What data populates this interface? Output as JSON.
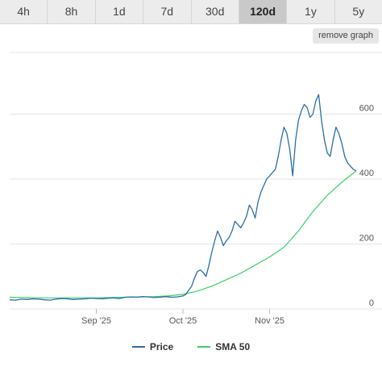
{
  "range_tabs": [
    "4h",
    "8h",
    "1d",
    "7d",
    "30d",
    "120d",
    "1y",
    "5y"
  ],
  "active_tab": "120d",
  "remove_graph_label": "remove graph",
  "colors": {
    "price": "#2a6fa8",
    "sma": "#3ecf6a",
    "grid": "#e4e4e4"
  },
  "chart_data": {
    "type": "line",
    "x_ticks": [
      "Sep '25",
      "Oct '25",
      "Nov '25"
    ],
    "x_tick_days": [
      30,
      60,
      90
    ],
    "y_ticks": [
      0,
      200,
      400,
      600
    ],
    "ylim": [
      0,
      790
    ],
    "xlim": [
      0,
      120
    ],
    "y_axis_side": "right",
    "grid": true,
    "series": [
      {
        "name": "Price",
        "x": [
          0,
          2,
          4,
          6,
          8,
          10,
          12,
          14,
          16,
          18,
          20,
          22,
          24,
          26,
          28,
          30,
          32,
          34,
          36,
          38,
          40,
          42,
          44,
          46,
          48,
          50,
          52,
          54,
          56,
          58,
          60,
          61,
          62,
          63,
          64,
          65,
          66,
          67,
          68,
          69,
          70,
          71,
          72,
          73,
          74,
          75,
          76,
          77,
          78,
          79,
          80,
          81,
          82,
          83,
          84,
          85,
          86,
          87,
          88,
          89,
          90,
          91,
          92,
          93,
          94,
          95,
          96,
          97,
          98,
          99,
          100,
          101,
          102,
          103,
          104,
          105,
          106,
          107,
          108,
          109,
          110,
          111,
          112,
          113,
          114,
          115,
          116,
          117,
          118,
          119,
          120
        ],
        "y": [
          28,
          27,
          30,
          29,
          31,
          30,
          28,
          27,
          30,
          32,
          31,
          29,
          30,
          31,
          33,
          32,
          31,
          33,
          34,
          32,
          36,
          37,
          36,
          38,
          37,
          35,
          36,
          38,
          36,
          37,
          40,
          45,
          58,
          70,
          95,
          115,
          120,
          112,
          100,
          135,
          175,
          210,
          240,
          220,
          195,
          210,
          220,
          240,
          270,
          260,
          250,
          265,
          285,
          320,
          305,
          280,
          330,
          360,
          380,
          400,
          410,
          420,
          430,
          470,
          520,
          560,
          540,
          490,
          410,
          520,
          580,
          610,
          630,
          620,
          590,
          600,
          640,
          660,
          580,
          520,
          480,
          470,
          520,
          560,
          540,
          510,
          470,
          450,
          440,
          430,
          425
        ],
        "color_key": "price"
      },
      {
        "name": "SMA 50",
        "x": [
          0,
          5,
          10,
          15,
          20,
          25,
          30,
          35,
          40,
          45,
          50,
          55,
          60,
          65,
          70,
          75,
          80,
          85,
          90,
          95,
          100,
          105,
          110,
          115,
          120
        ],
        "y": [
          36,
          35,
          34,
          34,
          34,
          34,
          34,
          35,
          36,
          37,
          38,
          40,
          45,
          55,
          70,
          90,
          110,
          135,
          160,
          190,
          240,
          300,
          350,
          390,
          425
        ],
        "color_key": "sma"
      }
    ]
  }
}
